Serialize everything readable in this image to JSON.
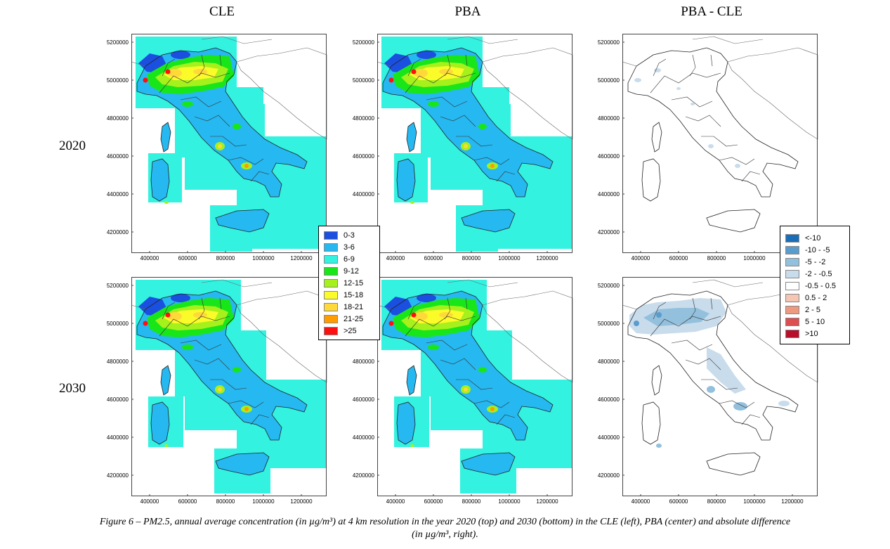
{
  "titles": {
    "cle": "CLE",
    "pba": "PBA",
    "diff": "PBA - CLE"
  },
  "years": [
    "2020",
    "2030"
  ],
  "y_ticks": [
    "5200000",
    "5000000",
    "4800000",
    "4600000",
    "4400000",
    "4200000"
  ],
  "x_ticks": [
    "400000",
    "600000",
    "800000",
    "1000000",
    "1200000"
  ],
  "legend_conc": [
    {
      "label": "0-3",
      "color": "#1a4fe0"
    },
    {
      "label": "3-6",
      "color": "#26b8f0"
    },
    {
      "label": "6-9",
      "color": "#33f2e0"
    },
    {
      "label": "9-12",
      "color": "#19e619"
    },
    {
      "label": "12-15",
      "color": "#a6f01c"
    },
    {
      "label": "15-18",
      "color": "#fbfb2a"
    },
    {
      "label": "18-21",
      "color": "#ffd93a"
    },
    {
      "label": "21-25",
      "color": "#ff9d00"
    },
    {
      "label": ">25",
      "color": "#ff1010"
    }
  ],
  "legend_diff": [
    {
      "label": "<-10",
      "color": "#1a6eb8"
    },
    {
      "label": "-10 - -5",
      "color": "#5a9ccc"
    },
    {
      "label": "-5 - -2",
      "color": "#93c0dd"
    },
    {
      "label": "-2 - -0.5",
      "color": "#c8dcec"
    },
    {
      "label": "-0.5 - 0.5",
      "color": "#ffffff"
    },
    {
      "label": "0.5 - 2",
      "color": "#f5c6b4"
    },
    {
      "label": "2 - 5",
      "color": "#ee9a80"
    },
    {
      "label": "5 - 10",
      "color": "#de4e4e"
    },
    {
      "label": ">10",
      "color": "#b8102a"
    }
  ],
  "caption_line1": "Figure 6 – PM2.5, annual average concentration (in µg/m³) at 4 km resolution in the year 2020 (top) and 2030 (bottom) in the CLE (left), PBA (center) and absolute difference",
  "caption_line2": "(in µg/m³, right)."
}
